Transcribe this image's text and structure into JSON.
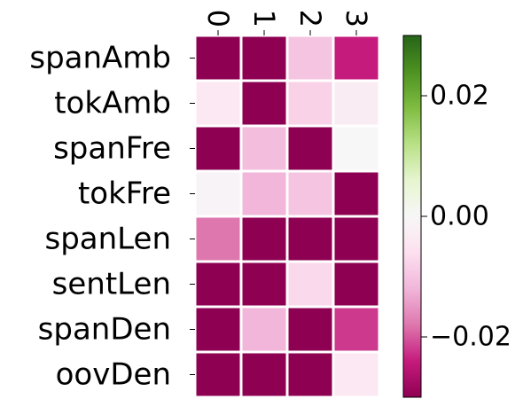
{
  "chart_data": {
    "type": "heatmap",
    "title": "",
    "xlabel": "",
    "ylabel": "",
    "x_categories": [
      "0",
      "1",
      "2",
      "3"
    ],
    "y_categories": [
      "spanAmb",
      "tokAmb",
      "spanFre",
      "tokFre",
      "spanLen",
      "sentLen",
      "spanDen",
      "oovDen"
    ],
    "values": [
      [
        -0.03,
        -0.03,
        -0.01,
        -0.024
      ],
      [
        -0.004,
        -0.03,
        -0.008,
        -0.003
      ],
      [
        -0.03,
        -0.011,
        -0.03,
        0.0
      ],
      [
        -0.001,
        -0.012,
        -0.01,
        -0.03
      ],
      [
        -0.018,
        -0.03,
        -0.03,
        -0.03
      ],
      [
        -0.03,
        -0.03,
        -0.007,
        -0.03
      ],
      [
        -0.03,
        -0.012,
        -0.03,
        -0.022
      ],
      [
        -0.03,
        -0.03,
        -0.03,
        -0.004
      ]
    ],
    "value_range": [
      -0.03,
      0.03
    ],
    "colormap": "PiYG",
    "grid": false,
    "colorbar": {
      "position": "right",
      "ticks": [
        -0.02,
        0.0,
        0.02
      ],
      "tick_labels": [
        "−0.02",
        "0.00",
        "0.02"
      ]
    }
  }
}
